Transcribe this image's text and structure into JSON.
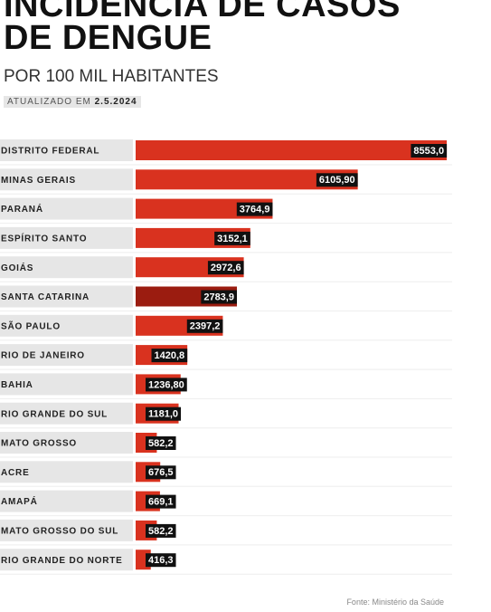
{
  "chart_data": {
    "type": "bar",
    "orientation": "horizontal",
    "title": "INCIDÊNCIA DE CASOS DE DENGUE",
    "subtitle": "POR 100 MIL HABITANTES",
    "updated_label": "ATUALIZADO EM",
    "updated_date": "2.5.2024",
    "source": "Fonte: Ministério da Saúde",
    "categories": [
      "DISTRITO FEDERAL",
      "MINAS GERAIS",
      "PARANÁ",
      "ESPÍRITO SANTO",
      "GOIÁS",
      "SANTA CATARINA",
      "SÃO PAULO",
      "RIO DE JANEIRO",
      "BAHIA",
      "RIO GRANDE DO SUL",
      "MATO GROSSO",
      "ACRE",
      "AMAPÁ",
      "MATO GROSSO DO SUL",
      "RIO GRANDE DO NORTE"
    ],
    "values": [
      8553.0,
      6105.9,
      3764.9,
      3152.1,
      2972.6,
      2783.9,
      2397.2,
      1420.8,
      1236.8,
      1181.0,
      582.2,
      676.5,
      669.1,
      582.2,
      416.3
    ],
    "value_labels": [
      "8553,0",
      "6105,90",
      "3764,9",
      "3152,1",
      "2972,6",
      "2783,9",
      "2397,2",
      "1420,8",
      "1236,80",
      "1181,0",
      "582,2",
      "676,5",
      "669,1",
      "582,2",
      "416,3"
    ],
    "colors": [
      "#d9321f",
      "#d9321f",
      "#d9321f",
      "#d9321f",
      "#d9321f",
      "#9b1c10",
      "#d9321f",
      "#d9321f",
      "#d9321f",
      "#d9321f",
      "#d9321f",
      "#d9321f",
      "#d9321f",
      "#d9321f",
      "#d9321f"
    ],
    "xlim": [
      0,
      8700
    ]
  }
}
